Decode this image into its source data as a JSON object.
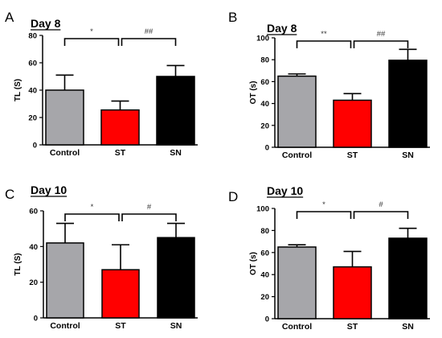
{
  "chart_data": [
    {
      "panel": "A",
      "type": "bar",
      "title": "Day 8",
      "ylabel": "TL (S)",
      "categories": [
        "Control",
        "ST",
        "SN"
      ],
      "values": [
        40,
        25.5,
        50
      ],
      "errors": [
        11,
        6.5,
        8
      ],
      "colors": [
        "#a6a6aa",
        "#ff0000",
        "#000000"
      ],
      "ylim": [
        0,
        80
      ],
      "yticks": [
        "0",
        "20",
        "40",
        "60",
        "80"
      ],
      "sig_left": "*",
      "sig_right": "##"
    },
    {
      "panel": "B",
      "type": "bar",
      "title": "Day 8",
      "ylabel": "OT (s)",
      "categories": [
        "Control",
        "ST",
        "SN"
      ],
      "values": [
        65,
        43,
        79.5
      ],
      "errors": [
        2,
        6,
        10
      ],
      "colors": [
        "#a6a6aa",
        "#ff0000",
        "#000000"
      ],
      "ylim": [
        0,
        100
      ],
      "yticks": [
        "0",
        "20",
        "40",
        "60",
        "80",
        "100"
      ],
      "sig_left": "**",
      "sig_right": "##"
    },
    {
      "panel": "C",
      "type": "bar",
      "title": "Day 10",
      "ylabel": "TL (S)",
      "categories": [
        "Control",
        "ST",
        "SN"
      ],
      "values": [
        42,
        27,
        45
      ],
      "errors": [
        11,
        14,
        8
      ],
      "colors": [
        "#a6a6aa",
        "#ff0000",
        "#000000"
      ],
      "ylim": [
        0,
        60
      ],
      "yticks": [
        "0",
        "20",
        "40",
        "60"
      ],
      "sig_left": "*",
      "sig_right": "#"
    },
    {
      "panel": "D",
      "type": "bar",
      "title": "Day 10",
      "ylabel": "OT (s)",
      "categories": [
        "Control",
        "ST",
        "SN"
      ],
      "values": [
        65,
        47,
        73
      ],
      "errors": [
        2,
        14,
        9
      ],
      "colors": [
        "#a6a6aa",
        "#ff0000",
        "#000000"
      ],
      "ylim": [
        0,
        100
      ],
      "yticks": [
        "0",
        "20",
        "40",
        "60",
        "80",
        "100"
      ],
      "sig_left": "*",
      "sig_right": "#"
    }
  ]
}
